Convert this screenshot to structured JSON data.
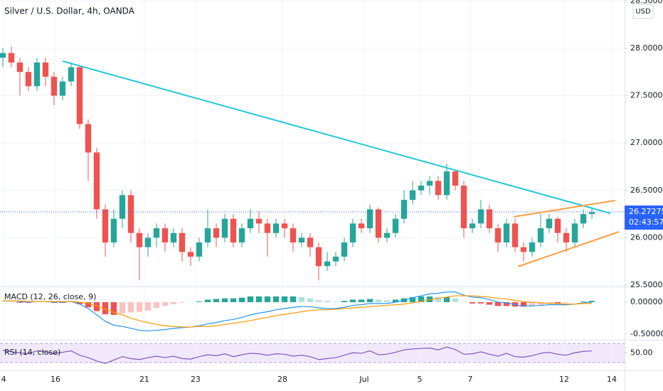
{
  "chart_data": [
    {
      "type": "candlestick",
      "title": "Silver / U.S. Dollar, 4h, OANDA",
      "currency": "USD",
      "up_color": "#26a69a",
      "down_color": "#ef5350",
      "grid": true,
      "open": [
        27.9,
        27.95,
        27.85,
        27.75,
        27.6,
        27.85,
        27.7,
        27.5,
        27.65,
        27.8,
        27.2,
        26.9,
        26.3,
        25.95,
        26.2,
        26.45,
        26.05,
        25.9,
        26.0,
        26.1,
        25.95,
        26.05,
        25.85,
        25.8,
        25.95,
        26.1,
        26.0,
        26.2,
        25.95,
        26.1,
        26.2,
        26.15,
        26.05,
        26.15,
        26.1,
        25.95,
        26.0,
        25.9,
        25.7,
        25.75,
        25.8,
        25.95,
        26.15,
        26.1,
        26.3,
        26.0,
        26.05,
        26.2,
        26.4,
        26.5,
        26.55,
        26.6,
        26.45,
        26.7,
        26.55,
        26.1,
        26.15,
        26.3,
        26.1,
        25.95,
        26.15,
        25.9,
        25.85,
        25.95,
        26.1,
        26.2,
        26.05,
        25.95,
        26.15,
        26.25
      ],
      "high": [
        28.0,
        28.02,
        27.9,
        27.8,
        27.9,
        27.9,
        27.75,
        27.7,
        27.85,
        27.82,
        27.25,
        26.95,
        26.35,
        26.3,
        26.5,
        26.5,
        26.1,
        26.05,
        26.15,
        26.15,
        26.1,
        26.1,
        25.9,
        26.0,
        26.3,
        26.15,
        26.25,
        26.25,
        26.15,
        26.3,
        26.28,
        26.2,
        26.2,
        26.2,
        26.15,
        26.05,
        26.05,
        25.95,
        25.85,
        25.85,
        26.0,
        26.2,
        26.2,
        26.35,
        26.32,
        26.1,
        26.25,
        26.5,
        26.6,
        26.6,
        26.65,
        26.65,
        26.78,
        26.72,
        26.6,
        26.2,
        26.4,
        26.35,
        26.15,
        26.2,
        26.2,
        25.95,
        26.0,
        26.25,
        26.25,
        26.22,
        26.1,
        26.2,
        26.3,
        26.32
      ],
      "low": [
        27.8,
        27.8,
        27.5,
        27.55,
        27.55,
        27.6,
        27.4,
        27.45,
        27.6,
        27.15,
        26.6,
        26.2,
        25.8,
        25.9,
        26.1,
        25.95,
        25.55,
        25.8,
        25.9,
        25.85,
        25.9,
        25.75,
        25.7,
        25.75,
        25.9,
        25.9,
        25.95,
        25.9,
        25.9,
        26.05,
        26.05,
        25.8,
        26.0,
        26.0,
        25.85,
        25.9,
        25.8,
        25.55,
        25.65,
        25.7,
        25.75,
        25.9,
        26.05,
        26.05,
        25.95,
        25.95,
        26.0,
        26.15,
        26.35,
        26.45,
        26.45,
        26.4,
        26.4,
        26.5,
        26.0,
        26.05,
        26.1,
        26.05,
        25.85,
        25.9,
        25.85,
        25.75,
        25.8,
        25.9,
        26.05,
        25.95,
        25.85,
        25.9,
        26.1,
        26.2
      ],
      "close": [
        27.95,
        27.85,
        27.75,
        27.6,
        27.85,
        27.7,
        27.5,
        27.65,
        27.8,
        27.2,
        26.9,
        26.3,
        25.95,
        26.2,
        26.45,
        26.05,
        25.9,
        26.0,
        26.1,
        25.95,
        26.05,
        25.85,
        25.8,
        25.95,
        26.1,
        26.0,
        26.2,
        25.95,
        26.1,
        26.2,
        26.15,
        26.05,
        26.15,
        26.1,
        25.95,
        26.0,
        25.9,
        25.7,
        25.75,
        25.8,
        25.95,
        26.15,
        26.1,
        26.3,
        26.0,
        26.05,
        26.2,
        26.4,
        26.5,
        26.55,
        26.6,
        26.45,
        26.7,
        26.55,
        26.1,
        26.15,
        26.3,
        26.1,
        25.95,
        26.15,
        25.9,
        25.85,
        25.95,
        26.1,
        26.2,
        26.05,
        25.95,
        26.15,
        26.25,
        26.27
      ],
      "last_price": 26.27275,
      "countdown": "02:43:57",
      "ylim": [
        25.5,
        28.51
      ],
      "yticks": [
        {
          "value": 25.5,
          "label": "25.50000"
        },
        {
          "value": 26,
          "label": "26.00000"
        },
        {
          "value": 26.5,
          "label": "26.50000"
        },
        {
          "value": 27,
          "label": "27.00000"
        },
        {
          "value": 27.5,
          "label": "27.50000"
        },
        {
          "value": 28,
          "label": "28.00000"
        },
        {
          "value": 28.5,
          "label": "28.50000"
        }
      ],
      "xlim": [
        -0.33,
        72.83
      ],
      "xticks": [
        {
          "value": 0.1,
          "label": "4"
        },
        {
          "value": 6.17,
          "label": "16"
        },
        {
          "value": 16.58,
          "label": "21"
        },
        {
          "value": 22.58,
          "label": "23"
        },
        {
          "value": 32.75,
          "label": "28"
        },
        {
          "value": 42.33,
          "label": "Jul"
        },
        {
          "value": 48.83,
          "label": "5"
        },
        {
          "value": 54.75,
          "label": "7"
        },
        {
          "value": 65.75,
          "label": "12"
        },
        {
          "value": 71.33,
          "label": "14"
        }
      ]
    },
    {
      "type": "macd",
      "title": "MACD (12, 26, close, 9)",
      "series": [
        {
          "name": "Histogram",
          "color": "#26a69a",
          "negative_color": "#ef5350",
          "values": [
            0,
            0,
            -0.01,
            -0.01,
            0,
            0,
            -0.01,
            -0.01,
            0,
            -0.03,
            -0.08,
            -0.14,
            -0.19,
            -0.2,
            -0.18,
            -0.16,
            -0.15,
            -0.13,
            -0.09,
            -0.06,
            -0.03,
            -0.01,
            0,
            0.01,
            0.04,
            0.05,
            0.06,
            0.06,
            0.07,
            0.09,
            0.09,
            0.09,
            0.09,
            0.09,
            0.09,
            0.08,
            0.06,
            0.03,
            0.02,
            0.01,
            0.02,
            0.04,
            0.04,
            0.05,
            0.04,
            0.03,
            0.04,
            0.06,
            0.08,
            0.09,
            0.09,
            0.08,
            0.08,
            0.06,
            0.01,
            -0.02,
            -0.02,
            -0.04,
            -0.06,
            -0.06,
            -0.07,
            -0.07,
            -0.06,
            -0.04,
            -0.02,
            -0.02,
            -0.01,
            0,
            0.01,
            0.02
          ]
        },
        {
          "name": "MACD",
          "color": "#2196f3",
          "values": [
            0.02,
            0.02,
            0.01,
            0,
            0.01,
            0.01,
            0,
            0,
            0.01,
            -0.03,
            -0.1,
            -0.2,
            -0.3,
            -0.36,
            -0.38,
            -0.41,
            -0.44,
            -0.45,
            -0.44,
            -0.43,
            -0.41,
            -0.4,
            -0.39,
            -0.37,
            -0.34,
            -0.32,
            -0.29,
            -0.27,
            -0.24,
            -0.2,
            -0.17,
            -0.15,
            -0.12,
            -0.1,
            -0.08,
            -0.07,
            -0.07,
            -0.09,
            -0.1,
            -0.1,
            -0.08,
            -0.05,
            -0.04,
            -0.02,
            -0.02,
            -0.02,
            0,
            0.03,
            0.07,
            0.1,
            0.13,
            0.14,
            0.16,
            0.16,
            0.11,
            0.08,
            0.07,
            0.04,
            0,
            -0.01,
            -0.04,
            -0.06,
            -0.06,
            -0.05,
            -0.04,
            -0.04,
            -0.04,
            -0.03,
            -0.01,
            0
          ]
        },
        {
          "name": "Signal",
          "color": "#ff9800",
          "values": [
            0.02,
            0.02,
            0.02,
            0.01,
            0.01,
            0.01,
            0.01,
            0.01,
            0.01,
            0,
            -0.02,
            -0.06,
            -0.11,
            -0.16,
            -0.2,
            -0.25,
            -0.29,
            -0.32,
            -0.35,
            -0.37,
            -0.38,
            -0.39,
            -0.39,
            -0.38,
            -0.38,
            -0.37,
            -0.35,
            -0.33,
            -0.31,
            -0.29,
            -0.26,
            -0.24,
            -0.21,
            -0.19,
            -0.17,
            -0.15,
            -0.13,
            -0.12,
            -0.12,
            -0.11,
            -0.1,
            -0.09,
            -0.08,
            -0.07,
            -0.06,
            -0.05,
            -0.04,
            -0.03,
            -0.01,
            0.01,
            0.04,
            0.06,
            0.08,
            0.1,
            0.1,
            0.1,
            0.09,
            0.08,
            0.06,
            0.05,
            0.03,
            0.01,
            0,
            -0.01,
            -0.02,
            -0.02,
            -0.03,
            -0.03,
            -0.02,
            -0.02
          ]
        }
      ],
      "ylim": [
        -0.59,
        0.19
      ],
      "yticks": [
        {
          "value": -0.5,
          "label": "-0.50000"
        },
        {
          "value": 0,
          "label": "0.00000"
        }
      ]
    },
    {
      "type": "line",
      "title": "RSI (14, close)",
      "color": "#7e57c2",
      "values": [
        55,
        52,
        50,
        48,
        54,
        52,
        48,
        51,
        54,
        45,
        40,
        33,
        28,
        35,
        42,
        38,
        36,
        40,
        43,
        40,
        43,
        38,
        37,
        42,
        46,
        44,
        48,
        42,
        46,
        49,
        48,
        45,
        48,
        47,
        43,
        45,
        42,
        36,
        38,
        40,
        45,
        50,
        49,
        54,
        46,
        47,
        51,
        56,
        58,
        59,
        60,
        56,
        62,
        57,
        47,
        48,
        52,
        47,
        43,
        49,
        42,
        41,
        44,
        49,
        51,
        47,
        45,
        50,
        53,
        54
      ],
      "ylim": [
        15,
        74
      ],
      "yticks": [
        {
          "value": 50,
          "label": "50.00"
        }
      ]
    }
  ]
}
